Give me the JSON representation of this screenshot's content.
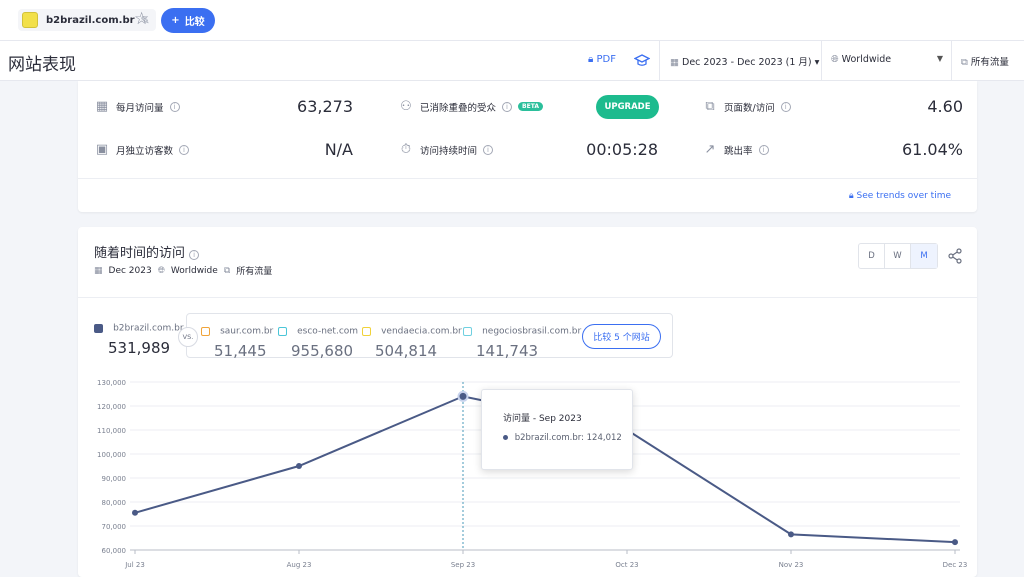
{
  "topbar": {
    "site": "b2brazil.com.br",
    "compare_label": "比较"
  },
  "header": {
    "title": "网站表现",
    "pdf_label": "PDF",
    "date_range": "Dec 2023 - Dec 2023 (1 月)",
    "region": "Worldwide",
    "traffic": "所有流量"
  },
  "metrics": {
    "monthly_visits": {
      "label": "每月访问量",
      "value": "63,273"
    },
    "unique_visitors": {
      "label": "月独立访客数",
      "value": "N/A"
    },
    "dedup_audience": {
      "label": "已消除重叠的受众",
      "badge": "BETA",
      "button": "UPGRADE"
    },
    "visit_duration": {
      "label": "访问持续时间",
      "value": "00:05:28"
    },
    "pages_per_visit": {
      "label": "页面数/访问",
      "value": "4.60"
    },
    "bounce_rate": {
      "label": "跳出率",
      "value": "61.04%"
    },
    "trends_link": "See trends over time"
  },
  "visits_card": {
    "title": "随着时间的访问",
    "date": "Dec 2023",
    "region": "Worldwide",
    "traffic": "所有流量",
    "granularity": [
      "D",
      "W",
      "M"
    ],
    "main_site": {
      "name": "b2brazil.com.br",
      "value": "531,989",
      "color": "#4a5a86"
    },
    "vs_label": "VS.",
    "competitors": [
      {
        "name": "saur.com.br",
        "value": "51,445",
        "color": "#f0a43a"
      },
      {
        "name": "esco-net.com",
        "value": "955,680",
        "color": "#4bc6d8"
      },
      {
        "name": "vendaecia.com.br",
        "value": "504,814",
        "color": "#f0d23a"
      },
      {
        "name": "negociosbrasil.com.br",
        "value": "141,743",
        "color": "#6fd0e0"
      }
    ],
    "compare_button": "比较 5 个网站"
  },
  "tooltip": {
    "title": "访问量 - Sep 2023",
    "row": "b2brazil.com.br: 124,012"
  },
  "chart_data": {
    "type": "line",
    "categories": [
      "Jul 23",
      "Aug 23",
      "Sep 23",
      "Oct 23",
      "Nov 23",
      "Dec 23"
    ],
    "series": [
      {
        "name": "b2brazil.com.br",
        "values": [
          75500,
          95000,
          124012,
          110000,
          66500,
          63273
        ]
      }
    ],
    "ylim": [
      60000,
      130000
    ],
    "yticks": [
      "60,000",
      "70,000",
      "80,000",
      "90,000",
      "100,000",
      "110,000",
      "120,000",
      "130,000"
    ],
    "line_color": "#4a5a86",
    "grid": true
  }
}
